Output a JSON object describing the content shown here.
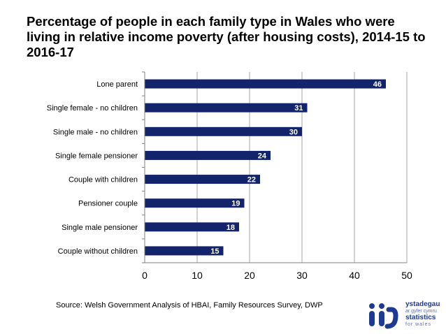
{
  "title": "Percentage of people in each family type in Wales who were living in relative income poverty (after housing costs), 2014-15 to 2016-17",
  "source": "Source: Welsh Government Analysis of HBAI, Family Resources Survey, DWP",
  "logo": {
    "line1": "ystadegau",
    "line2": "ar gyfer cymru",
    "line3": "statistics",
    "line4": "for wales"
  },
  "colors": {
    "bar": "#14246b",
    "grid": "#a6a6a6",
    "logo": "#1f3a93"
  },
  "chart_data": {
    "type": "bar",
    "orientation": "horizontal",
    "categories": [
      "Lone parent",
      "Single female - no children",
      "Single male - no children",
      "Single female pensioner",
      "Couple with children",
      "Pensioner couple",
      "Single male pensioner",
      "Couple without children"
    ],
    "values": [
      46,
      31,
      30,
      24,
      22,
      19,
      18,
      15
    ],
    "xlim": [
      0,
      50
    ],
    "xticks": [
      0,
      10,
      20,
      30,
      40,
      50
    ],
    "grid": true,
    "data_labels": true
  }
}
